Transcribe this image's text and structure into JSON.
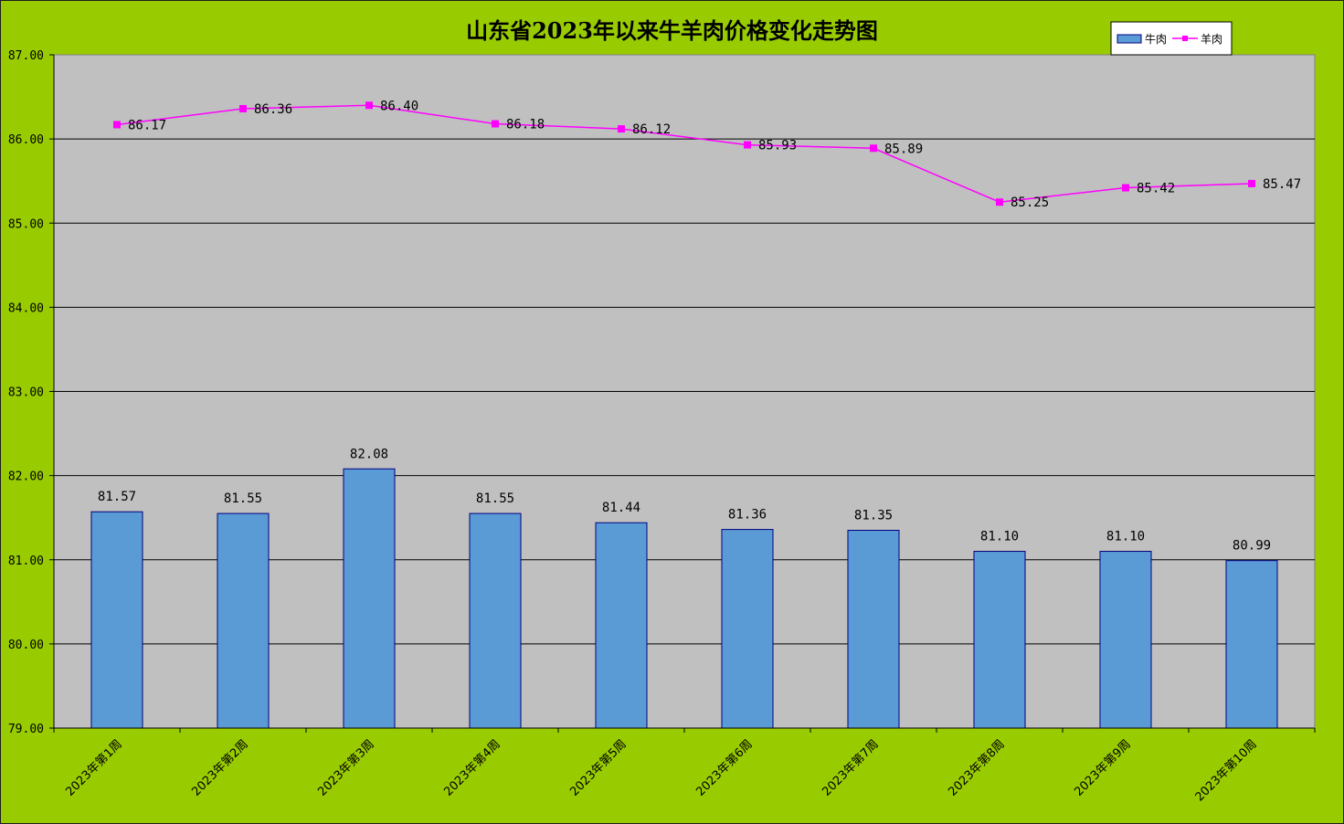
{
  "chart_data": {
    "type": "bar",
    "title": "山东省2023年以来牛羊肉价格变化走势图",
    "categories": [
      "2023年第1周",
      "2023年第2周",
      "2023年第3周",
      "2023年第4周",
      "2023年第5周",
      "2023年第6周",
      "2023年第7周",
      "2023年第8周",
      "2023年第9周",
      "2023年第10周"
    ],
    "series": [
      {
        "name": "牛肉",
        "type": "bar",
        "color": "#5b9bd5",
        "values": [
          81.57,
          81.55,
          82.08,
          81.55,
          81.44,
          81.36,
          81.35,
          81.1,
          81.1,
          80.99
        ],
        "labels": [
          "81.57",
          "81.55",
          "82.08",
          "81.55",
          "81.44",
          "81.36",
          "81.35",
          "81.10",
          "81.10",
          "80.99"
        ]
      },
      {
        "name": "羊肉",
        "type": "line",
        "color": "#ff00ff",
        "values": [
          86.17,
          86.36,
          86.4,
          86.18,
          86.12,
          85.93,
          85.89,
          85.25,
          85.42,
          85.47
        ],
        "labels": [
          "86.17",
          "86.36",
          "86.40",
          "86.18",
          "86.12",
          "85.93",
          "85.89",
          "85.25",
          "85.42",
          "85.47"
        ]
      }
    ],
    "ylim": [
      79,
      87
    ],
    "yticks": [
      "79.00",
      "80.00",
      "81.00",
      "82.00",
      "83.00",
      "84.00",
      "85.00",
      "86.00",
      "87.00"
    ],
    "xlabel": "",
    "ylabel": "",
    "grid": true,
    "legend": "top-right",
    "plot_background": "#c0c0c0",
    "page_background": "#99cc00"
  }
}
